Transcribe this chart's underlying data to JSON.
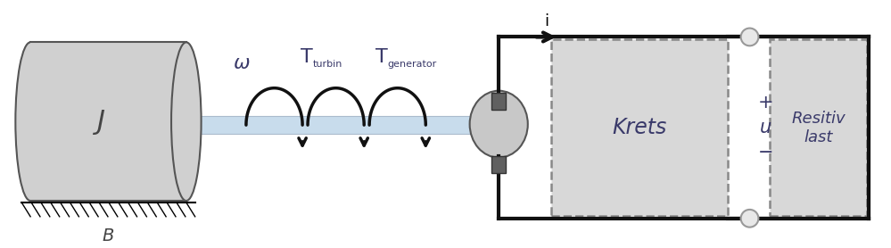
{
  "bg_color": "#ffffff",
  "cylinder_color": "#d0d0d0",
  "cylinder_edge_color": "#555555",
  "shaft_color": "#c8dcec",
  "shaft_edge_color": "#aabbcc",
  "box_color": "#d8d8d8",
  "dashed_color": "#888888",
  "arrow_color": "#111111",
  "text_color": "#3a3a6a",
  "wire_color": "#111111",
  "generator_color": "#c8c8c8",
  "connector_color": "#606060",
  "label_J": "J",
  "label_B": "B",
  "label_omega": "ω",
  "label_i": "i",
  "label_Krets": "Krets",
  "label_u": "u",
  "label_plus": "+",
  "label_minus": "−",
  "label_Resitiv": "Resitiv\nlast"
}
